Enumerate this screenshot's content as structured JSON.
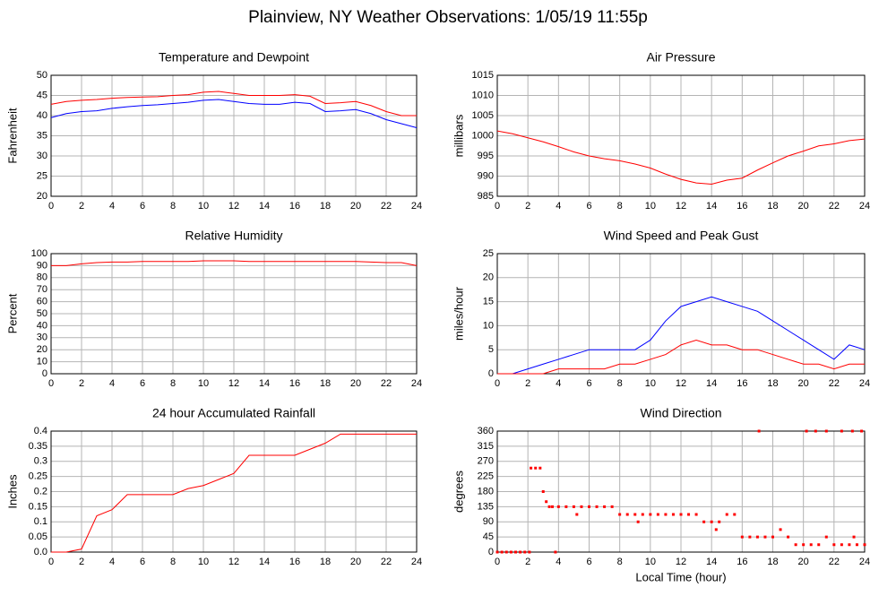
{
  "title": "Plainview, NY Weather Observations: 1/05/19 11:55p",
  "chart_data": [
    {
      "type": "line",
      "title": "Temperature and Dewpoint",
      "ylabel": "Fahrenheit",
      "x": [
        0,
        1,
        2,
        3,
        4,
        5,
        6,
        7,
        8,
        9,
        10,
        11,
        12,
        13,
        14,
        15,
        16,
        17,
        18,
        19,
        20,
        21,
        22,
        23,
        24
      ],
      "series": [
        {
          "color": "#ff0000",
          "values": [
            42.8,
            43.5,
            43.8,
            44.0,
            44.3,
            44.5,
            44.6,
            44.7,
            45.0,
            45.2,
            45.8,
            46.0,
            45.5,
            45.0,
            45.0,
            45.0,
            45.2,
            44.8,
            43.0,
            43.2,
            43.5,
            42.5,
            41.0,
            40.0,
            40.0
          ]
        },
        {
          "color": "#0000ff",
          "values": [
            39.5,
            40.5,
            41.0,
            41.2,
            41.8,
            42.2,
            42.5,
            42.7,
            43.0,
            43.3,
            43.8,
            44.0,
            43.5,
            43.0,
            42.8,
            42.8,
            43.3,
            43.0,
            41.0,
            41.2,
            41.5,
            40.5,
            39.0,
            38.0,
            37.0
          ]
        }
      ],
      "xlim": [
        0,
        24
      ],
      "xticks": [
        0,
        2,
        4,
        6,
        8,
        10,
        12,
        14,
        16,
        18,
        20,
        22,
        24
      ],
      "ylim": [
        20,
        50
      ],
      "yticks": [
        20,
        25,
        30,
        35,
        40,
        45,
        50
      ],
      "grid": true
    },
    {
      "type": "line",
      "title": "Air Pressure",
      "ylabel": "millibars",
      "x": [
        0,
        1,
        2,
        3,
        4,
        5,
        6,
        7,
        8,
        9,
        10,
        11,
        12,
        13,
        14,
        15,
        16,
        17,
        18,
        19,
        20,
        21,
        22,
        23,
        24
      ],
      "series": [
        {
          "color": "#ff0000",
          "values": [
            1001.2,
            1000.5,
            999.5,
            998.5,
            997.3,
            996.0,
            995.0,
            994.3,
            993.8,
            993.0,
            992.0,
            990.5,
            989.2,
            988.3,
            988.0,
            989.0,
            989.5,
            991.5,
            993.3,
            995.0,
            996.2,
            997.5,
            998.0,
            998.8,
            999.2
          ]
        }
      ],
      "xlim": [
        0,
        24
      ],
      "xticks": [
        0,
        2,
        4,
        6,
        8,
        10,
        12,
        14,
        16,
        18,
        20,
        22,
        24
      ],
      "ylim": [
        985,
        1015
      ],
      "yticks": [
        985,
        990,
        995,
        1000,
        1005,
        1010,
        1015
      ],
      "grid": true
    },
    {
      "type": "line",
      "title": "Relative Humidity",
      "ylabel": "Percent",
      "x": [
        0,
        1,
        2,
        3,
        4,
        5,
        6,
        7,
        8,
        9,
        10,
        11,
        12,
        13,
        14,
        15,
        16,
        17,
        18,
        19,
        20,
        21,
        22,
        23,
        24
      ],
      "series": [
        {
          "color": "#ff0000",
          "values": [
            90,
            90,
            91.5,
            92.5,
            93,
            93,
            93.5,
            93.5,
            93.5,
            93.5,
            94,
            94,
            94,
            93.5,
            93.5,
            93.5,
            93.5,
            93.5,
            93.5,
            93.5,
            93.5,
            93,
            92.5,
            92.5,
            90
          ]
        }
      ],
      "xlim": [
        0,
        24
      ],
      "xticks": [
        0,
        2,
        4,
        6,
        8,
        10,
        12,
        14,
        16,
        18,
        20,
        22,
        24
      ],
      "ylim": [
        0,
        100
      ],
      "yticks": [
        0,
        10,
        20,
        30,
        40,
        50,
        60,
        70,
        80,
        90,
        100
      ],
      "grid": true
    },
    {
      "type": "line",
      "title": "Wind Speed and Peak Gust",
      "ylabel": "miles/hour",
      "x": [
        0,
        1,
        2,
        3,
        4,
        5,
        6,
        7,
        8,
        9,
        10,
        11,
        12,
        13,
        14,
        15,
        16,
        17,
        18,
        19,
        20,
        21,
        22,
        23,
        24
      ],
      "series": [
        {
          "color": "#0000ff",
          "values": [
            0,
            0,
            1,
            2,
            3,
            4,
            5,
            5,
            5,
            5,
            7,
            11,
            14,
            15,
            16,
            15,
            14,
            13,
            11,
            9,
            7,
            5,
            3,
            6,
            5
          ]
        },
        {
          "color": "#ff0000",
          "values": [
            0,
            0,
            0,
            0,
            1,
            1,
            1,
            1,
            2,
            2,
            3,
            4,
            6,
            7,
            6,
            6,
            5,
            5,
            4,
            3,
            2,
            2,
            1,
            2,
            2
          ]
        }
      ],
      "xlim": [
        0,
        24
      ],
      "xticks": [
        0,
        2,
        4,
        6,
        8,
        10,
        12,
        14,
        16,
        18,
        20,
        22,
        24
      ],
      "ylim": [
        0,
        25
      ],
      "yticks": [
        0,
        5,
        10,
        15,
        20,
        25
      ],
      "grid": true
    },
    {
      "type": "line",
      "title": "24 hour Accumulated Rainfall",
      "ylabel": "Inches",
      "x": [
        0,
        1,
        2,
        3,
        4,
        5,
        6,
        7,
        8,
        9,
        10,
        11,
        12,
        13,
        14,
        15,
        16,
        17,
        18,
        19,
        20,
        21,
        22,
        23,
        24
      ],
      "series": [
        {
          "color": "#ff0000",
          "values": [
            0,
            0,
            0.01,
            0.12,
            0.14,
            0.19,
            0.19,
            0.19,
            0.19,
            0.21,
            0.22,
            0.24,
            0.26,
            0.32,
            0.32,
            0.32,
            0.32,
            0.34,
            0.36,
            0.39,
            0.39,
            0.39,
            0.39,
            0.39,
            0.39
          ]
        }
      ],
      "xlim": [
        0,
        24
      ],
      "xticks": [
        0,
        2,
        4,
        6,
        8,
        10,
        12,
        14,
        16,
        18,
        20,
        22,
        24
      ],
      "ylim": [
        0,
        0.4
      ],
      "yticks": [
        {
          "value": 0,
          "label": "0.0"
        },
        0.05,
        0.1,
        0.15,
        0.2,
        0.25,
        0.3,
        0.35,
        0.4
      ],
      "grid": true
    },
    {
      "type": "scatter",
      "title": "Wind Direction",
      "ylabel": "degrees",
      "xlabel": "Local Time (hour)",
      "color": "#ff0000",
      "x": [
        0,
        0.3,
        0.6,
        0.9,
        1.2,
        1.5,
        1.8,
        2.1,
        3.8,
        2.2,
        2.5,
        2.8,
        3.0,
        3.2,
        3.4,
        3.6,
        4.0,
        4.5,
        5.0,
        5.2,
        5.5,
        6.0,
        6.5,
        7.0,
        7.5,
        8.0,
        8.5,
        9.0,
        9.2,
        9.5,
        10.0,
        10.5,
        11.0,
        11.5,
        12.0,
        12.5,
        13.0,
        13.5,
        14.0,
        14.5,
        15.0,
        15.5,
        14.3,
        16.0,
        16.5,
        17.0,
        17.5,
        18.0,
        18.5,
        19.0,
        19.5,
        20.0,
        20.5,
        21.0,
        21.5,
        22.0,
        22.5,
        23.0,
        23.5,
        24.0,
        17.1,
        20.2,
        20.8,
        21.5,
        22.5,
        23.2,
        23.8,
        23.3
      ],
      "values": [
        0,
        0,
        0,
        0,
        0,
        0,
        0,
        0,
        0,
        250,
        250,
        250,
        180,
        150,
        135,
        135,
        135,
        135,
        135,
        112,
        135,
        135,
        135,
        135,
        135,
        112,
        112,
        112,
        90,
        112,
        112,
        112,
        112,
        112,
        112,
        112,
        112,
        90,
        90,
        90,
        112,
        112,
        67,
        45,
        45,
        45,
        45,
        45,
        67,
        45,
        22,
        22,
        22,
        22,
        45,
        22,
        22,
        22,
        22,
        22,
        360,
        360,
        360,
        360,
        360,
        360,
        360,
        45
      ],
      "xlim": [
        0,
        24
      ],
      "xticks": [
        0,
        2,
        4,
        6,
        8,
        10,
        12,
        14,
        16,
        18,
        20,
        22,
        24
      ],
      "ylim": [
        0,
        360
      ],
      "yticks": [
        0,
        45,
        90,
        135,
        180,
        225,
        270,
        315,
        360
      ],
      "grid": true
    }
  ]
}
